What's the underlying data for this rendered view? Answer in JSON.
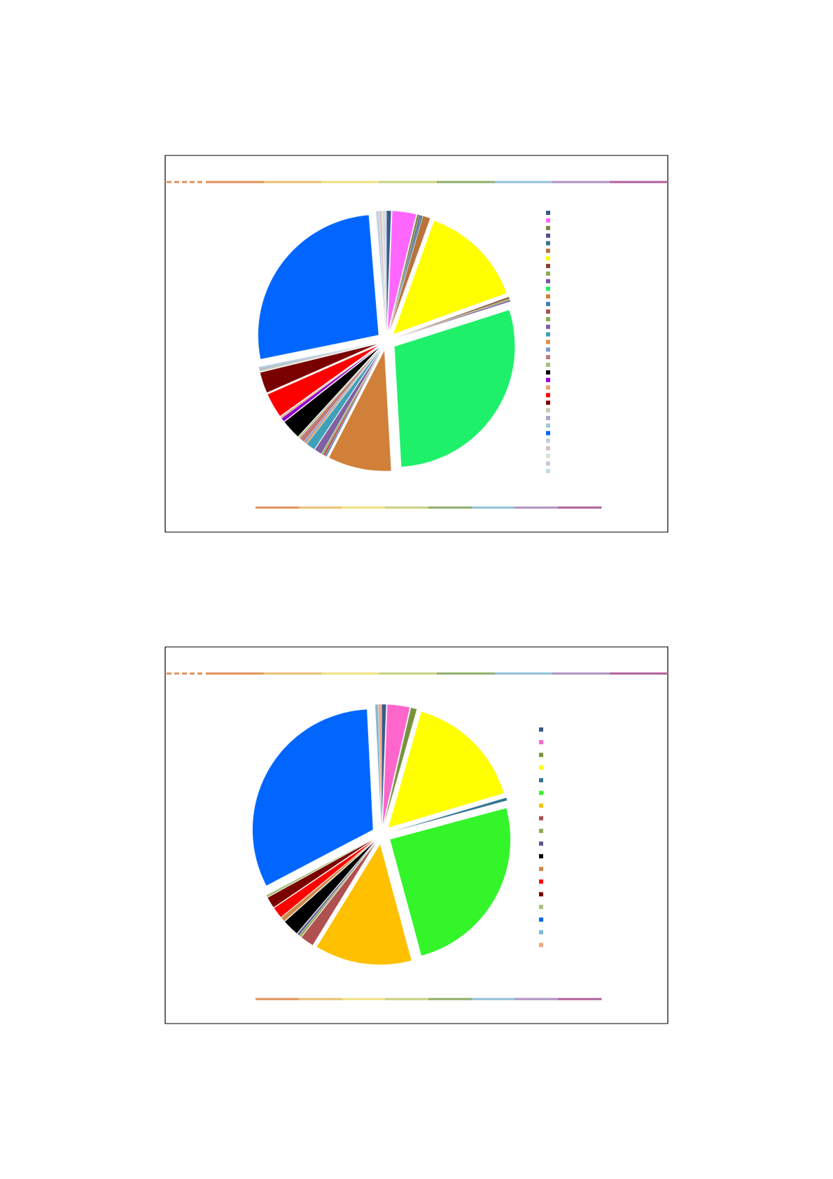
{
  "chart_data": [
    {
      "type": "pie",
      "categories": [
        null,
        null,
        null,
        null,
        null,
        null,
        null,
        null,
        null,
        null,
        null,
        null,
        null,
        null,
        null,
        null,
        null,
        null,
        null,
        null,
        null,
        null,
        null,
        null,
        null,
        null,
        null,
        null,
        null,
        null,
        null,
        null,
        null,
        null,
        null
      ],
      "values": [
        0.6,
        3.2,
        0.3,
        0.2,
        0.2,
        1.0,
        14,
        0.2,
        0.2,
        0.2,
        29,
        8.5,
        0.2,
        0.3,
        0.2,
        1.0,
        1.2,
        0.2,
        0.2,
        0.7,
        0.2,
        2.6,
        0.5,
        0.2,
        3.3,
        2.8,
        0.2,
        0.2,
        0.2,
        26.9,
        0.4,
        0.3,
        0.2,
        0.2,
        0.2
      ],
      "colors": [
        "#3a5a8c",
        "#ff66ff",
        "#77853f",
        "#4f4f8a",
        "#31758f",
        "#b8733a",
        "#ffff00",
        "#8a4030",
        "#8faa55",
        "#7a55a0",
        "#1ef06a",
        "#d08038",
        "#4a7ab8",
        "#b05050",
        "#8aaa50",
        "#8060a0",
        "#40a0b8",
        "#e0904a",
        "#7a9ad0",
        "#c07878",
        "#a8c080",
        "#000000",
        "#9000d0",
        "#f0a070",
        "#ff0000",
        "#7a0000",
        "#c0d0b0",
        "#a8a8c8",
        "#a0c8d8",
        "#0066ff",
        "#c0d0e0",
        "#d8c0c0",
        "#d8e0d8",
        "#d0c8d8",
        "#c0dce8"
      ]
    },
    {
      "type": "pie",
      "categories": [
        null,
        null,
        null,
        null,
        null,
        null,
        null,
        null,
        null,
        null,
        null,
        null,
        null,
        null,
        null,
        null,
        null,
        null
      ],
      "values": [
        0.6,
        3,
        0.8,
        16,
        0.4,
        25,
        13,
        1.8,
        0.3,
        0.3,
        2.2,
        0.6,
        1.5,
        1.5,
        0.3,
        31.9,
        0.4,
        0.4
      ],
      "colors": [
        "#3a5a8c",
        "#ff66cc",
        "#77933c",
        "#ffff00",
        "#31758f",
        "#33f52a",
        "#ffc000",
        "#b05050",
        "#8faa55",
        "#605a90",
        "#000000",
        "#d08a4a",
        "#ff0000",
        "#7a0000",
        "#a8c080",
        "#0066ff",
        "#80b8d8",
        "#f0a880"
      ]
    }
  ]
}
